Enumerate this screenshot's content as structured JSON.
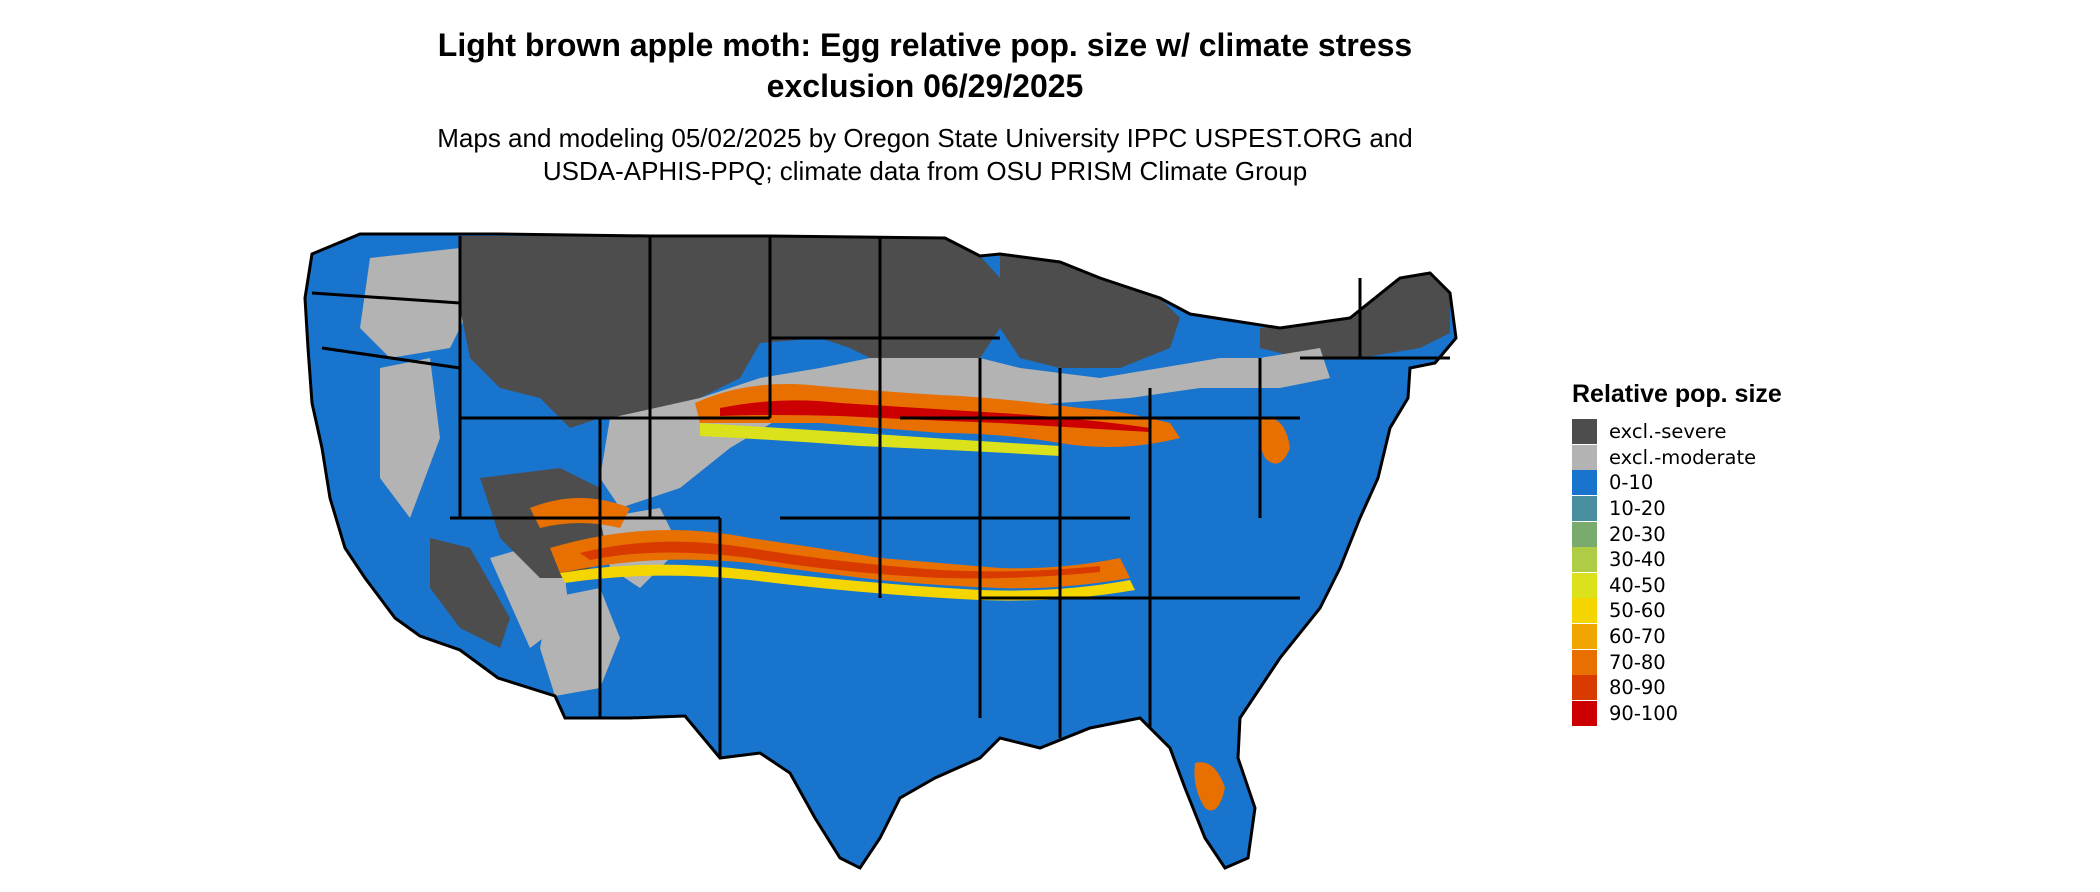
{
  "title_line1": "Light brown apple moth: Egg relative pop. size w/ climate stress",
  "title_line2": "exclusion 06/29/2025",
  "subtitle_line1": "Maps and modeling 05/02/2025 by Oregon State University IPPC USPEST.ORG and",
  "subtitle_line2": "USDA-APHIS-PPQ; climate data from OSU PRISM Climate Group",
  "legend": {
    "title": "Relative pop. size",
    "items": [
      {
        "label": "excl.-severe",
        "color": "#4d4d4d"
      },
      {
        "label": "excl.-moderate",
        "color": "#b3b3b3"
      },
      {
        "label": "0-10",
        "color": "#1874cd"
      },
      {
        "label": "10-20",
        "color": "#4a8fa0"
      },
      {
        "label": "20-30",
        "color": "#7aab6e"
      },
      {
        "label": "30-40",
        "color": "#aecd45"
      },
      {
        "label": "40-50",
        "color": "#dbe21c"
      },
      {
        "label": "50-60",
        "color": "#f4d500"
      },
      {
        "label": "60-70",
        "color": "#f0a500"
      },
      {
        "label": "70-80",
        "color": "#e87000"
      },
      {
        "label": "80-90",
        "color": "#d93a00"
      },
      {
        "label": "90-100",
        "color": "#cc0000"
      }
    ]
  },
  "map_regions": [
    {
      "name": "northern-plains-severe",
      "class": "excl.-severe"
    },
    {
      "name": "great-lakes-severe",
      "class": "excl.-severe"
    },
    {
      "name": "new-england-severe",
      "class": "excl.-severe"
    },
    {
      "name": "rockies-severe",
      "class": "excl.-severe"
    },
    {
      "name": "central-plains-moderate",
      "class": "excl.-moderate"
    },
    {
      "name": "southwest-moderate",
      "class": "excl.-moderate"
    },
    {
      "name": "southeast-low",
      "class": "0-10"
    },
    {
      "name": "west-coast-low",
      "class": "0-10"
    },
    {
      "name": "central-high-band",
      "class": "70-80"
    },
    {
      "name": "gulf-high-band",
      "class": "70-80"
    }
  ]
}
